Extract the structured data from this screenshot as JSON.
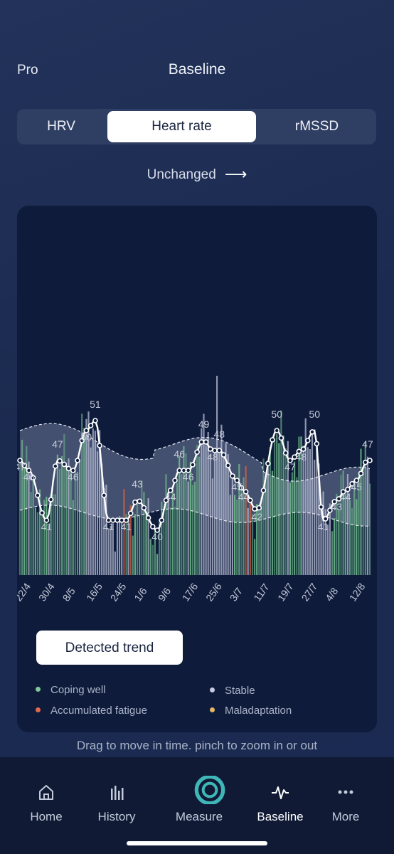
{
  "header": {
    "left_label": "Pro",
    "title": "Baseline"
  },
  "tabs": [
    {
      "label": "HRV",
      "selected": false
    },
    {
      "label": "Heart rate",
      "selected": true
    },
    {
      "label": "rMSSD",
      "selected": false
    }
  ],
  "trend_status": "Unchanged",
  "chart_data": {
    "type": "bar",
    "x_tick_labels": [
      "22/4",
      "30/4",
      "8/5",
      "16/5",
      "24/5",
      "1/6",
      "9/6",
      "17/6",
      "25/6",
      "3/7",
      "11/7",
      "19/7",
      "27/7",
      "4/8",
      "12/8"
    ],
    "point_labels": [
      {
        "index": 0,
        "value": 47
      },
      {
        "index": 4,
        "value": 46
      },
      {
        "index": 12,
        "value": 41
      },
      {
        "index": 17,
        "value": 47
      },
      {
        "index": 24,
        "value": 46
      },
      {
        "index": 30,
        "value": 50
      },
      {
        "index": 34,
        "value": 51
      },
      {
        "index": 40,
        "value": 41
      },
      {
        "index": 48,
        "value": 41
      },
      {
        "index": 53,
        "value": 43
      },
      {
        "index": 62,
        "value": 40
      },
      {
        "index": 68,
        "value": 44
      },
      {
        "index": 72,
        "value": 46
      },
      {
        "index": 76,
        "value": 46
      },
      {
        "index": 83,
        "value": 49
      },
      {
        "index": 87,
        "value": 48
      },
      {
        "index": 90,
        "value": 48
      },
      {
        "index": 98,
        "value": 45
      },
      {
        "index": 101,
        "value": 44
      },
      {
        "index": 107,
        "value": 42
      },
      {
        "index": 116,
        "value": 50
      },
      {
        "index": 122,
        "value": 47
      },
      {
        "index": 127,
        "value": 48
      },
      {
        "index": 133,
        "value": 50
      },
      {
        "index": 137,
        "value": 41
      },
      {
        "index": 143,
        "value": 43
      },
      {
        "index": 147,
        "value": 44
      },
      {
        "index": 152,
        "value": 45
      },
      {
        "index": 157,
        "value": 47
      }
    ],
    "baseline_band": {
      "upper_start": 50,
      "upper_end": 45,
      "lower_start": 42,
      "lower_end": 41
    },
    "legend": [
      {
        "label": "Coping well",
        "color": "#7fc79a"
      },
      {
        "label": "Stable",
        "color": "#c7cbe0"
      },
      {
        "label": "Accumulated fatigue",
        "color": "#e0694c"
      },
      {
        "label": "Maladaptation",
        "color": "#e3b564"
      }
    ]
  },
  "detected_trend_button": "Detected trend",
  "hint": "Drag to move in time. pinch to zoom in or out",
  "nav": [
    {
      "label": "Home",
      "icon": "home-icon"
    },
    {
      "label": "History",
      "icon": "history-icon"
    },
    {
      "label": "Measure",
      "icon": "measure-icon"
    },
    {
      "label": "Baseline",
      "icon": "baseline-icon",
      "selected": true
    },
    {
      "label": "More",
      "icon": "more-icon"
    }
  ]
}
